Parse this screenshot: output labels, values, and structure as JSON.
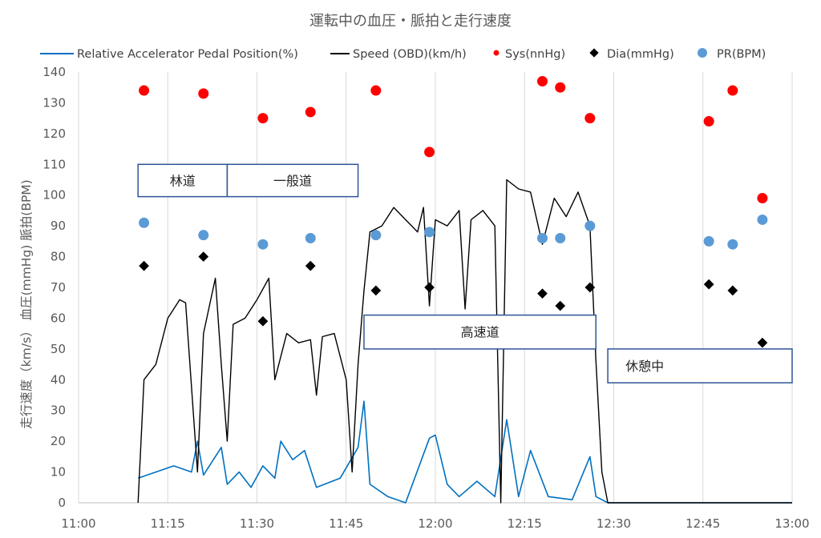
{
  "chart_data": {
    "type": "line",
    "title": "運転中の血圧・脈拍と走行速度",
    "ylabel": "走行速度（km/s） 血圧(mmHg) 脈拍(BPM)",
    "ylim": [
      0,
      140
    ],
    "yticks": [
      "0",
      "10",
      "20",
      "30",
      "40",
      "50",
      "60",
      "70",
      "80",
      "90",
      "100",
      "110",
      "120",
      "130",
      "140"
    ],
    "xlim": [
      "11:00",
      "13:00"
    ],
    "xticks": [
      "11:00",
      "11:15",
      "11:30",
      "11:45",
      "12:00",
      "12:15",
      "12:30",
      "12:45",
      "13:00"
    ],
    "grid": "vertical",
    "legend_position": "top",
    "series": [
      {
        "name": "Relative Accelerator Pedal Position(%)",
        "kind": "line",
        "color": "#0070c0",
        "points": [
          [
            "11:10",
            8
          ],
          [
            "11:13",
            10
          ],
          [
            "11:16",
            12
          ],
          [
            "11:19",
            10
          ],
          [
            "11:20",
            20
          ],
          [
            "11:21",
            9
          ],
          [
            "11:24",
            18
          ],
          [
            "11:25",
            6
          ],
          [
            "11:27",
            10
          ],
          [
            "11:29",
            5
          ],
          [
            "11:31",
            12
          ],
          [
            "11:33",
            8
          ],
          [
            "11:34",
            20
          ],
          [
            "11:36",
            14
          ],
          [
            "11:38",
            17
          ],
          [
            "11:40",
            5
          ],
          [
            "11:44",
            8
          ],
          [
            "11:47",
            18
          ],
          [
            "11:48",
            33
          ],
          [
            "11:49",
            6
          ],
          [
            "11:52",
            2
          ],
          [
            "11:55",
            0
          ],
          [
            "11:59",
            21
          ],
          [
            "12:00",
            22
          ],
          [
            "12:02",
            6
          ],
          [
            "12:04",
            2
          ],
          [
            "12:07",
            7
          ],
          [
            "12:10",
            2
          ],
          [
            "12:12",
            27
          ],
          [
            "12:14",
            2
          ],
          [
            "12:16",
            17
          ],
          [
            "12:19",
            2
          ],
          [
            "12:23",
            1
          ],
          [
            "12:26",
            15
          ],
          [
            "12:27",
            2
          ],
          [
            "12:29",
            0
          ],
          [
            "13:00",
            0
          ]
        ]
      },
      {
        "name": "Speed (OBD)(km/h)",
        "kind": "line",
        "color": "#000000",
        "points": [
          [
            "11:10",
            0
          ],
          [
            "11:11",
            40
          ],
          [
            "11:13",
            45
          ],
          [
            "11:15",
            60
          ],
          [
            "11:17",
            66
          ],
          [
            "11:18",
            65
          ],
          [
            "11:20",
            10
          ],
          [
            "11:21",
            55
          ],
          [
            "11:23",
            73
          ],
          [
            "11:24",
            45
          ],
          [
            "11:25",
            20
          ],
          [
            "11:26",
            58
          ],
          [
            "11:28",
            60
          ],
          [
            "11:30",
            66
          ],
          [
            "11:32",
            73
          ],
          [
            "11:33",
            40
          ],
          [
            "11:35",
            55
          ],
          [
            "11:37",
            52
          ],
          [
            "11:39",
            53
          ],
          [
            "11:40",
            35
          ],
          [
            "11:41",
            54
          ],
          [
            "11:43",
            55
          ],
          [
            "11:45",
            40
          ],
          [
            "11:46",
            10
          ],
          [
            "11:47",
            45
          ],
          [
            "11:48",
            69
          ],
          [
            "11:49",
            88
          ],
          [
            "11:51",
            90
          ],
          [
            "11:53",
            96
          ],
          [
            "11:55",
            92
          ],
          [
            "11:57",
            88
          ],
          [
            "11:58",
            96
          ],
          [
            "11:59",
            64
          ],
          [
            "12:00",
            92
          ],
          [
            "12:02",
            90
          ],
          [
            "12:04",
            95
          ],
          [
            "12:05",
            63
          ],
          [
            "12:06",
            92
          ],
          [
            "12:08",
            95
          ],
          [
            "12:10",
            90
          ],
          [
            "12:11",
            0
          ],
          [
            "12:12",
            105
          ],
          [
            "12:14",
            102
          ],
          [
            "12:16",
            101
          ],
          [
            "12:18",
            84
          ],
          [
            "12:20",
            99
          ],
          [
            "12:22",
            93
          ],
          [
            "12:24",
            101
          ],
          [
            "12:26",
            90
          ],
          [
            "12:27",
            46
          ],
          [
            "12:28",
            10
          ],
          [
            "12:29",
            0
          ],
          [
            "13:00",
            0
          ]
        ]
      }
    ],
    "markers": [
      {
        "name": "Sys(nnHg)",
        "color": "#ff0000",
        "marker": "circle",
        "points": [
          [
            "11:11",
            134
          ],
          [
            "11:21",
            133
          ],
          [
            "11:31",
            125
          ],
          [
            "11:39",
            127
          ],
          [
            "11:50",
            134
          ],
          [
            "11:59",
            114
          ],
          [
            "12:18",
            137
          ],
          [
            "12:21",
            135
          ],
          [
            "12:26",
            125
          ],
          [
            "12:46",
            124
          ],
          [
            "12:50",
            134
          ],
          [
            "12:55",
            99
          ]
        ]
      },
      {
        "name": "Dia(mmHg)",
        "color": "#000000",
        "marker": "diamond",
        "points": [
          [
            "11:11",
            77
          ],
          [
            "11:21",
            80
          ],
          [
            "11:31",
            59
          ],
          [
            "11:39",
            77
          ],
          [
            "11:50",
            69
          ],
          [
            "11:59",
            70
          ],
          [
            "12:18",
            68
          ],
          [
            "12:21",
            64
          ],
          [
            "12:26",
            70
          ],
          [
            "12:46",
            71
          ],
          [
            "12:50",
            69
          ],
          [
            "12:55",
            52
          ]
        ]
      },
      {
        "name": "PR(BPM)",
        "color": "#5b9bd5",
        "marker": "circle",
        "points": [
          [
            "11:11",
            91
          ],
          [
            "11:21",
            87
          ],
          [
            "11:31",
            84
          ],
          [
            "11:39",
            86
          ],
          [
            "11:50",
            87
          ],
          [
            "11:59",
            88
          ],
          [
            "12:18",
            86
          ],
          [
            "12:21",
            86
          ],
          [
            "12:26",
            90
          ],
          [
            "12:46",
            85
          ],
          [
            "12:50",
            84
          ],
          [
            "12:55",
            92
          ]
        ]
      }
    ],
    "annotations": [
      {
        "text": "林道",
        "x_start": "11:10",
        "x_end": "11:25",
        "y_low": 99.5,
        "y_high": 110
      },
      {
        "text": "一般道",
        "x_start": "11:25",
        "x_end": "11:47",
        "y_low": 99.5,
        "y_high": 110
      },
      {
        "text": "高速道",
        "x_start": "11:48",
        "x_end": "12:27",
        "y_low": 50,
        "y_high": 61
      },
      {
        "text": "休憩中",
        "x_start": "12:29",
        "x_end": "13:00",
        "y_low": 39,
        "y_high": 50
      }
    ]
  }
}
